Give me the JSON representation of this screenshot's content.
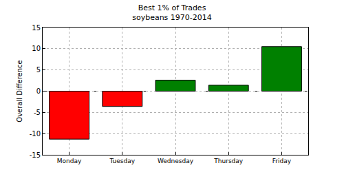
{
  "chart_data": {
    "type": "bar",
    "title": "Best 1% of Trades",
    "subtitle": "soybeans 1970-2014",
    "y_label": "Overall Difference",
    "categories": [
      "Monday",
      "Tuesday",
      "Wednesday",
      "Thursday",
      "Friday"
    ],
    "values": [
      -11.3,
      -3.6,
      2.6,
      1.4,
      10.5
    ],
    "colors": [
      "#ff0000",
      "#ff0000",
      "#008000",
      "#008000",
      "#008000"
    ],
    "ylim": [
      -15,
      15
    ],
    "yticks": [
      -15,
      -10,
      -5,
      0,
      5,
      10,
      15
    ],
    "grid": true
  }
}
